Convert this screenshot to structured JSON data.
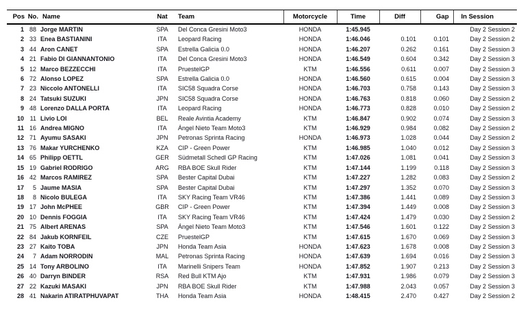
{
  "table": {
    "columns": [
      {
        "key": "pos",
        "label": "Pos"
      },
      {
        "key": "no",
        "label": "No."
      },
      {
        "key": "name",
        "label": "Name"
      },
      {
        "key": "nat",
        "label": "Nat"
      },
      {
        "key": "team",
        "label": "Team"
      },
      {
        "key": "motorcycle",
        "label": "Motorcycle"
      },
      {
        "key": "time",
        "label": "Time"
      },
      {
        "key": "diff",
        "label": "Diff"
      },
      {
        "key": "gap",
        "label": "Gap"
      },
      {
        "key": "session",
        "label": "In Session"
      }
    ],
    "rows": [
      {
        "pos": "1",
        "no": "88",
        "name": "Jorge MARTIN",
        "nat": "SPA",
        "team": "Del Conca Gresini Moto3",
        "motorcycle": "HONDA",
        "time": "1:45.945",
        "diff": "",
        "gap": "",
        "session": "Day 2 Session 2"
      },
      {
        "pos": "2",
        "no": "33",
        "name": "Enea BASTIANINI",
        "nat": "ITA",
        "team": "Leopard Racing",
        "motorcycle": "HONDA",
        "time": "1:46.046",
        "diff": "0.101",
        "gap": "0.101",
        "session": "Day 2 Session 2"
      },
      {
        "pos": "3",
        "no": "44",
        "name": "Aron CANET",
        "nat": "SPA",
        "team": "Estrella Galicia 0.0",
        "motorcycle": "HONDA",
        "time": "1:46.207",
        "diff": "0.262",
        "gap": "0.161",
        "session": "Day 2 Session 3"
      },
      {
        "pos": "4",
        "no": "21",
        "name": "Fabio DI GIANNANTONIO",
        "nat": "ITA",
        "team": "Del Conca Gresini Moto3",
        "motorcycle": "HONDA",
        "time": "1:46.549",
        "diff": "0.604",
        "gap": "0.342",
        "session": "Day 2 Session 3"
      },
      {
        "pos": "5",
        "no": "12",
        "name": "Marco BEZZECCHI",
        "nat": "ITA",
        "team": "PruestelGP",
        "motorcycle": "KTM",
        "time": "1:46.556",
        "diff": "0.611",
        "gap": "0.007",
        "session": "Day 2 Session 3"
      },
      {
        "pos": "6",
        "no": "72",
        "name": "Alonso LOPEZ",
        "nat": "SPA",
        "team": "Estrella Galicia 0.0",
        "motorcycle": "HONDA",
        "time": "1:46.560",
        "diff": "0.615",
        "gap": "0.004",
        "session": "Day 2 Session 3"
      },
      {
        "pos": "7",
        "no": "23",
        "name": "Niccolo ANTONELLI",
        "nat": "ITA",
        "team": "SIC58 Squadra Corse",
        "motorcycle": "HONDA",
        "time": "1:46.703",
        "diff": "0.758",
        "gap": "0.143",
        "session": "Day 2 Session 3"
      },
      {
        "pos": "8",
        "no": "24",
        "name": "Tatsuki SUZUKI",
        "nat": "JPN",
        "team": "SIC58 Squadra Corse",
        "motorcycle": "HONDA",
        "time": "1:46.763",
        "diff": "0.818",
        "gap": "0.060",
        "session": "Day 2 Session 2"
      },
      {
        "pos": "9",
        "no": "48",
        "name": "Lorenzo DALLA PORTA",
        "nat": "ITA",
        "team": "Leopard Racing",
        "motorcycle": "HONDA",
        "time": "1:46.773",
        "diff": "0.828",
        "gap": "0.010",
        "session": "Day 2 Session 2"
      },
      {
        "pos": "10",
        "no": "11",
        "name": "Livio LOI",
        "nat": "BEL",
        "team": "Reale Avintia Academy",
        "motorcycle": "KTM",
        "time": "1:46.847",
        "diff": "0.902",
        "gap": "0.074",
        "session": "Day 2 Session 3"
      },
      {
        "pos": "11",
        "no": "16",
        "name": "Andrea MIGNO",
        "nat": "ITA",
        "team": "Ángel Nieto Team Moto3",
        "motorcycle": "KTM",
        "time": "1:46.929",
        "diff": "0.984",
        "gap": "0.082",
        "session": "Day 2 Session 2"
      },
      {
        "pos": "12",
        "no": "71",
        "name": "Ayumu SASAKI",
        "nat": "JPN",
        "team": "Petronas Sprinta Racing",
        "motorcycle": "HONDA",
        "time": "1:46.973",
        "diff": "1.028",
        "gap": "0.044",
        "session": "Day 2 Session 2"
      },
      {
        "pos": "13",
        "no": "76",
        "name": "Makar YURCHENKO",
        "nat": "KZA",
        "team": "CIP - Green Power",
        "motorcycle": "KTM",
        "time": "1:46.985",
        "diff": "1.040",
        "gap": "0.012",
        "session": "Day 2 Session 3"
      },
      {
        "pos": "14",
        "no": "65",
        "name": "Philipp OETTL",
        "nat": "GER",
        "team": "Südmetall Schedl GP Racing",
        "motorcycle": "KTM",
        "time": "1:47.026",
        "diff": "1.081",
        "gap": "0.041",
        "session": "Day 2 Session 3"
      },
      {
        "pos": "15",
        "no": "19",
        "name": "Gabriel RODRIGO",
        "nat": "ARG",
        "team": "RBA BOE Skull Rider",
        "motorcycle": "KTM",
        "time": "1:47.144",
        "diff": "1.199",
        "gap": "0.118",
        "session": "Day 2 Session 3"
      },
      {
        "pos": "16",
        "no": "42",
        "name": "Marcos RAMIREZ",
        "nat": "SPA",
        "team": "Bester Capital Dubai",
        "motorcycle": "KTM",
        "time": "1:47.227",
        "diff": "1.282",
        "gap": "0.083",
        "session": "Day 2 Session 2"
      },
      {
        "pos": "17",
        "no": "5",
        "name": "Jaume MASIA",
        "nat": "SPA",
        "team": "Bester Capital Dubai",
        "motorcycle": "KTM",
        "time": "1:47.297",
        "diff": "1.352",
        "gap": "0.070",
        "session": "Day 2 Session 3"
      },
      {
        "pos": "18",
        "no": "8",
        "name": "Nicolo BULEGA",
        "nat": "ITA",
        "team": "SKY Racing Team VR46",
        "motorcycle": "KTM",
        "time": "1:47.386",
        "diff": "1.441",
        "gap": "0.089",
        "session": "Day 2 Session 3"
      },
      {
        "pos": "19",
        "no": "17",
        "name": "John McPHEE",
        "nat": "GBR",
        "team": "CIP - Green Power",
        "motorcycle": "KTM",
        "time": "1:47.394",
        "diff": "1.449",
        "gap": "0.008",
        "session": "Day 2 Session 3"
      },
      {
        "pos": "20",
        "no": "10",
        "name": "Dennis FOGGIA",
        "nat": "ITA",
        "team": "SKY Racing Team VR46",
        "motorcycle": "KTM",
        "time": "1:47.424",
        "diff": "1.479",
        "gap": "0.030",
        "session": "Day 2 Session 2"
      },
      {
        "pos": "21",
        "no": "75",
        "name": "Albert ARENAS",
        "nat": "SPA",
        "team": "Ángel Nieto Team Moto3",
        "motorcycle": "KTM",
        "time": "1:47.546",
        "diff": "1.601",
        "gap": "0.122",
        "session": "Day 2 Session 3"
      },
      {
        "pos": "22",
        "no": "84",
        "name": "Jakub KORNFEIL",
        "nat": "CZE",
        "team": "PruestelGP",
        "motorcycle": "KTM",
        "time": "1:47.615",
        "diff": "1.670",
        "gap": "0.069",
        "session": "Day 2 Session 3"
      },
      {
        "pos": "23",
        "no": "27",
        "name": "Kaito TOBA",
        "nat": "JPN",
        "team": "Honda Team Asia",
        "motorcycle": "HONDA",
        "time": "1:47.623",
        "diff": "1.678",
        "gap": "0.008",
        "session": "Day 2 Session 3"
      },
      {
        "pos": "24",
        "no": "7",
        "name": "Adam NORRODIN",
        "nat": "MAL",
        "team": "Petronas Sprinta Racing",
        "motorcycle": "HONDA",
        "time": "1:47.639",
        "diff": "1.694",
        "gap": "0.016",
        "session": "Day 2 Session 3"
      },
      {
        "pos": "25",
        "no": "14",
        "name": "Tony ARBOLINO",
        "nat": "ITA",
        "team": "Marinelli Snipers Team",
        "motorcycle": "HONDA",
        "time": "1:47.852",
        "diff": "1.907",
        "gap": "0.213",
        "session": "Day 2 Session 3"
      },
      {
        "pos": "26",
        "no": "40",
        "name": "Darryn BINDER",
        "nat": "RSA",
        "team": "Red Bull KTM Ajo",
        "motorcycle": "KTM",
        "time": "1:47.931",
        "diff": "1.986",
        "gap": "0.079",
        "session": "Day 2 Session 3"
      },
      {
        "pos": "27",
        "no": "22",
        "name": "Kazuki MASAKI",
        "nat": "JPN",
        "team": "RBA BOE Skull Rider",
        "motorcycle": "KTM",
        "time": "1:47.988",
        "diff": "2.043",
        "gap": "0.057",
        "session": "Day 2 Session 3"
      },
      {
        "pos": "28",
        "no": "41",
        "name": "Nakarin ATIRATPHUVAPAT",
        "nat": "THA",
        "team": "Honda Team Asia",
        "motorcycle": "HONDA",
        "time": "1:48.415",
        "diff": "2.470",
        "gap": "0.427",
        "session": "Day 2 Session 2"
      }
    ]
  }
}
